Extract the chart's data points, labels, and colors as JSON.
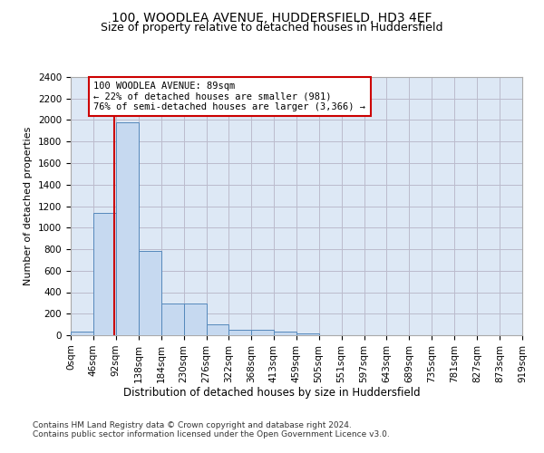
{
  "title1": "100, WOODLEA AVENUE, HUDDERSFIELD, HD3 4EF",
  "title2": "Size of property relative to detached houses in Huddersfield",
  "xlabel": "Distribution of detached houses by size in Huddersfield",
  "ylabel": "Number of detached properties",
  "bin_edges": [
    0,
    46,
    92,
    138,
    184,
    230,
    276,
    322,
    368,
    413,
    459,
    505,
    551,
    597,
    643,
    689,
    735,
    781,
    827,
    873,
    919
  ],
  "bar_heights": [
    30,
    1140,
    1980,
    780,
    295,
    295,
    100,
    50,
    50,
    30,
    20,
    0,
    0,
    0,
    0,
    0,
    0,
    0,
    0,
    0
  ],
  "bar_color": "#c6d9f0",
  "bar_edge_color": "#5588bb",
  "property_size": 89,
  "property_line_color": "#cc0000",
  "annotation_text": "100 WOODLEA AVENUE: 89sqm\n← 22% of detached houses are smaller (981)\n76% of semi-detached houses are larger (3,366) →",
  "annotation_box_color": "#ffffff",
  "annotation_box_edge_color": "#cc0000",
  "ylim": [
    0,
    2400
  ],
  "yticks": [
    0,
    200,
    400,
    600,
    800,
    1000,
    1200,
    1400,
    1600,
    1800,
    2000,
    2200,
    2400
  ],
  "grid_color": "#bbbbcc",
  "background_color": "#dde8f5",
  "footer_text": "Contains HM Land Registry data © Crown copyright and database right 2024.\nContains public sector information licensed under the Open Government Licence v3.0.",
  "title1_fontsize": 10,
  "title2_fontsize": 9,
  "xlabel_fontsize": 8.5,
  "ylabel_fontsize": 8,
  "tick_fontsize": 7.5,
  "annotation_fontsize": 7.5,
  "footer_fontsize": 6.5
}
